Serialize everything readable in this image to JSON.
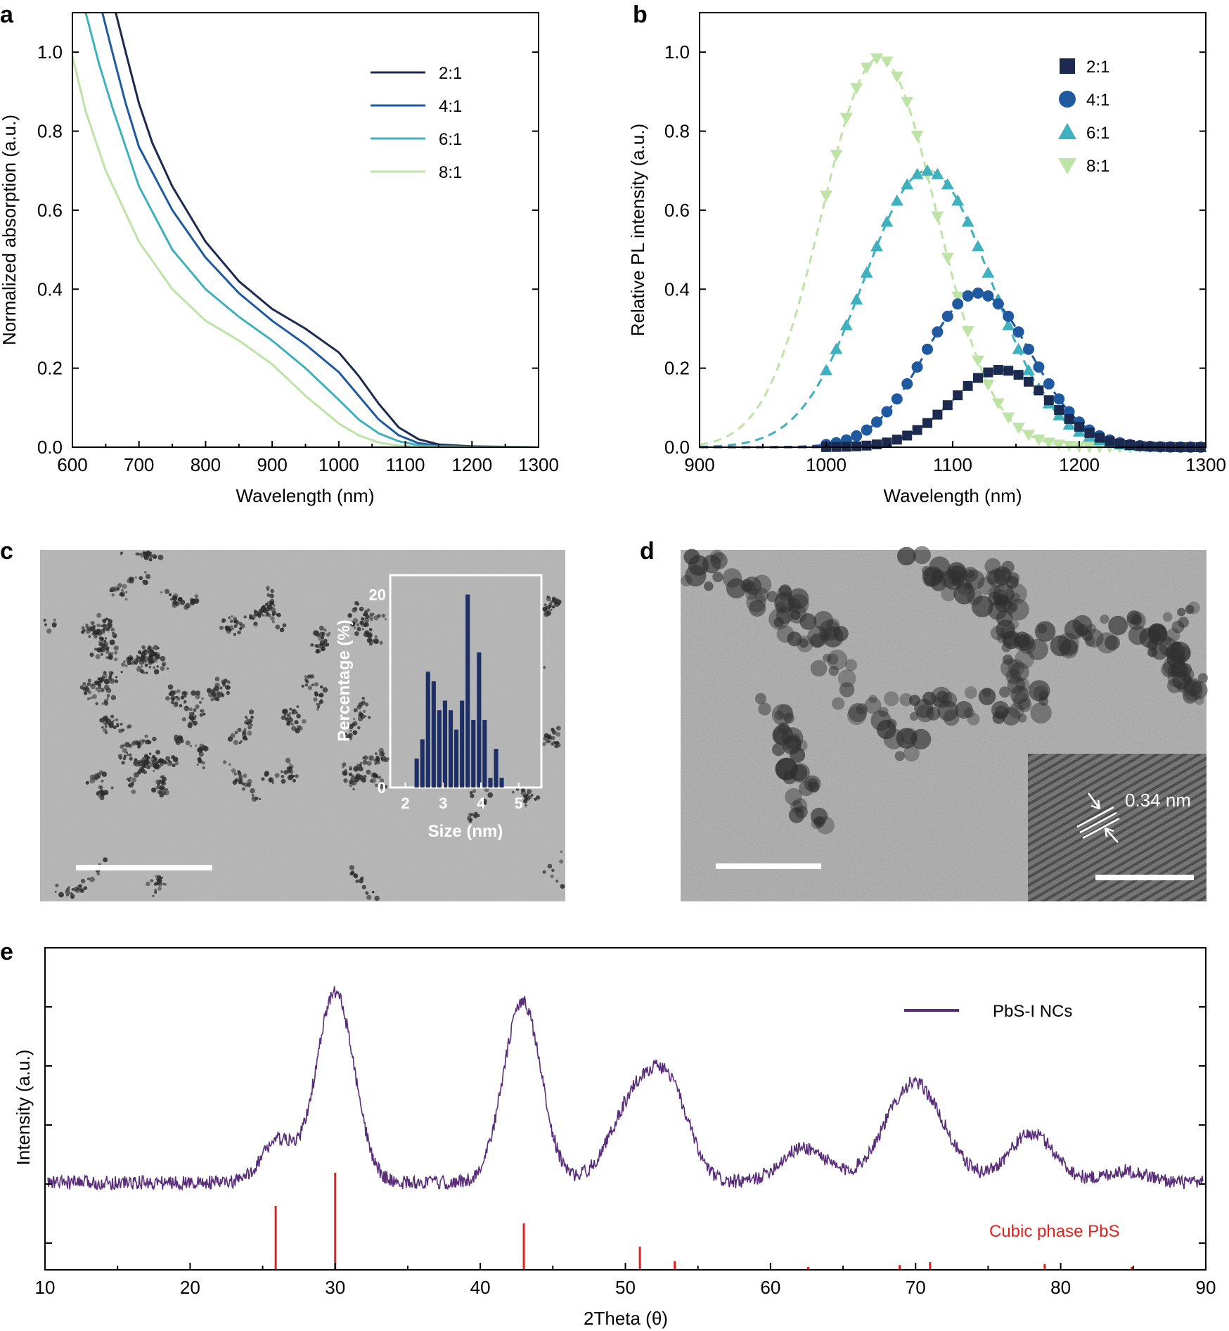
{
  "panel_labels": {
    "a": "a",
    "b": "b",
    "c": "c",
    "d": "d",
    "e": "e"
  },
  "colors": {
    "r21": "#1b2a4e",
    "r41": "#1f5aa0",
    "r61": "#3fb0bd",
    "r81": "#bde3a6",
    "xrd": "#5a2d7a",
    "ref": "#e3201b",
    "hist": "#1e2f66"
  },
  "chart_data": [
    {
      "id": "a",
      "type": "line",
      "xlabel": "Wavelength (nm)",
      "ylabel": "Normalized absorption (a.u.)",
      "xlim": [
        600,
        1300
      ],
      "ylim": [
        0,
        1.1
      ],
      "xticks": [
        600,
        700,
        800,
        900,
        1000,
        1100,
        1200,
        1300
      ],
      "yticks": [
        0.0,
        0.2,
        0.4,
        0.6,
        0.8,
        1.0
      ],
      "xtick_labels": [
        "600",
        "700",
        "800",
        "900",
        "1000",
        "1100",
        "1200",
        "1300"
      ],
      "ytick_labels": [
        "0.0",
        "0.2",
        "0.4",
        "0.6",
        "0.8",
        "1.0"
      ],
      "legend": [
        "2:1",
        "4:1",
        "6:1",
        "8:1"
      ],
      "legend_position": "top-right",
      "series": [
        {
          "name": "2:1",
          "color_key": "r21",
          "x": [
            665,
            680,
            700,
            720,
            750,
            800,
            850,
            900,
            950,
            1000,
            1030,
            1060,
            1090,
            1120,
            1150,
            1200,
            1300
          ],
          "y": [
            1.1,
            1.0,
            0.87,
            0.77,
            0.66,
            0.52,
            0.42,
            0.35,
            0.3,
            0.24,
            0.18,
            0.11,
            0.05,
            0.02,
            0.007,
            0.002,
            0.0
          ]
        },
        {
          "name": "4:1",
          "color_key": "r41",
          "x": [
            645,
            660,
            680,
            700,
            750,
            800,
            850,
            900,
            950,
            1000,
            1030,
            1060,
            1090,
            1120,
            1150,
            1200,
            1300
          ],
          "y": [
            1.1,
            1.0,
            0.87,
            0.76,
            0.6,
            0.48,
            0.39,
            0.32,
            0.26,
            0.19,
            0.13,
            0.07,
            0.03,
            0.01,
            0.004,
            0.001,
            0.0
          ]
        },
        {
          "name": "6:1",
          "color_key": "r61",
          "x": [
            620,
            640,
            660,
            700,
            750,
            800,
            850,
            900,
            950,
            1000,
            1030,
            1060,
            1090,
            1120,
            1150,
            1200,
            1300
          ],
          "y": [
            1.1,
            0.97,
            0.86,
            0.66,
            0.5,
            0.4,
            0.33,
            0.27,
            0.2,
            0.12,
            0.07,
            0.035,
            0.015,
            0.005,
            0.002,
            0.0,
            0.0
          ]
        },
        {
          "name": "8:1",
          "color_key": "r81",
          "x": [
            600,
            620,
            650,
            700,
            750,
            800,
            850,
            900,
            950,
            1000,
            1030,
            1060,
            1090,
            1120,
            1150,
            1200,
            1300
          ],
          "y": [
            0.99,
            0.85,
            0.7,
            0.52,
            0.4,
            0.32,
            0.27,
            0.21,
            0.13,
            0.06,
            0.03,
            0.012,
            0.004,
            0.001,
            0.0,
            0.0,
            0.0
          ]
        }
      ]
    },
    {
      "id": "b",
      "type": "scatter",
      "xlabel": "Wavelength (nm)",
      "ylabel": "Relative PL intensity (a.u.)",
      "xlim": [
        900,
        1300
      ],
      "ylim": [
        0,
        1.1
      ],
      "xticks": [
        900,
        1000,
        1100,
        1200,
        1300
      ],
      "yticks": [
        0.0,
        0.2,
        0.4,
        0.6,
        0.8,
        1.0
      ],
      "xtick_labels": [
        "900",
        "1000",
        "1100",
        "1200",
        "1300"
      ],
      "ytick_labels": [
        "0.0",
        "0.2",
        "0.4",
        "0.6",
        "0.8",
        "1.0"
      ],
      "legend": [
        "2:1",
        "4:1",
        "6:1",
        "8:1"
      ],
      "legend_position": "top-right",
      "series": [
        {
          "name": "2:1",
          "marker": "square",
          "color_key": "r21",
          "peak": 1138,
          "amp": 0.196,
          "width": 38
        },
        {
          "name": "4:1",
          "marker": "circle",
          "color_key": "r41",
          "peak": 1120,
          "amp": 0.39,
          "width": 42
        },
        {
          "name": "6:1",
          "marker": "triangle-up",
          "color_key": "r61",
          "peak": 1080,
          "amp": 0.7,
          "width": 50
        },
        {
          "name": "8:1",
          "marker": "triangle-down",
          "color_key": "r81",
          "peak": 1042,
          "amp": 0.985,
          "width": 45
        }
      ]
    },
    {
      "id": "c-inset",
      "type": "bar",
      "xlabel": "Size (nm)",
      "ylabel": "Percentage (%)",
      "xlim": [
        1.6,
        5.6
      ],
      "ylim": [
        0,
        22
      ],
      "xticks": [
        2,
        3,
        4,
        5
      ],
      "yticks": [
        0,
        20
      ],
      "xtick_labels": [
        "2",
        "3",
        "4",
        "5"
      ],
      "ytick_labels": [
        "0",
        "20"
      ],
      "categories": [
        2.3,
        2.45,
        2.6,
        2.75,
        2.9,
        3.05,
        3.2,
        3.35,
        3.5,
        3.65,
        3.8,
        3.95,
        4.1,
        4.25,
        4.4,
        4.55
      ],
      "values": [
        3,
        5,
        12,
        11,
        8,
        9,
        8,
        6,
        9,
        20,
        7,
        14,
        7,
        1,
        4,
        1
      ]
    },
    {
      "id": "e",
      "type": "line",
      "xlabel": "2Theta (θ)",
      "ylabel": "Intensity (a.u.)",
      "xlim": [
        10,
        90
      ],
      "xticks": [
        10,
        20,
        30,
        40,
        50,
        60,
        70,
        80,
        90
      ],
      "xtick_labels": [
        "10",
        "20",
        "30",
        "40",
        "50",
        "60",
        "70",
        "80",
        "90"
      ],
      "legend": [
        "PbS-I NCs"
      ],
      "legend_position": "top-right",
      "annotation": "Cubic phase PbS",
      "peaks": [
        {
          "pos": 26.0,
          "height": 0.18,
          "width": 1.1
        },
        {
          "pos": 30.0,
          "height": 0.82,
          "width": 1.3
        },
        {
          "pos": 42.9,
          "height": 0.78,
          "width": 1.3
        },
        {
          "pos": 51.0,
          "height": 0.4,
          "width": 1.8
        },
        {
          "pos": 53.3,
          "height": 0.26,
          "width": 1.3
        },
        {
          "pos": 62.3,
          "height": 0.15,
          "width": 1.6
        },
        {
          "pos": 69.9,
          "height": 0.43,
          "width": 2.0
        },
        {
          "pos": 78.0,
          "height": 0.21,
          "width": 1.6
        },
        {
          "pos": 84.5,
          "height": 0.05,
          "width": 1.5
        }
      ],
      "reference_lines": [
        {
          "pos": 25.9,
          "rel": 0.66
        },
        {
          "pos": 30.0,
          "rel": 1.0
        },
        {
          "pos": 43.0,
          "rel": 0.48
        },
        {
          "pos": 51.0,
          "rel": 0.24
        },
        {
          "pos": 53.4,
          "rel": 0.09
        },
        {
          "pos": 62.6,
          "rel": 0.03
        },
        {
          "pos": 68.9,
          "rel": 0.05
        },
        {
          "pos": 71.0,
          "rel": 0.08
        },
        {
          "pos": 78.9,
          "rel": 0.06
        },
        {
          "pos": 84.9,
          "rel": 0.03
        }
      ]
    }
  ],
  "tem_d_inset": {
    "spacing_label": "0.34 nm"
  }
}
